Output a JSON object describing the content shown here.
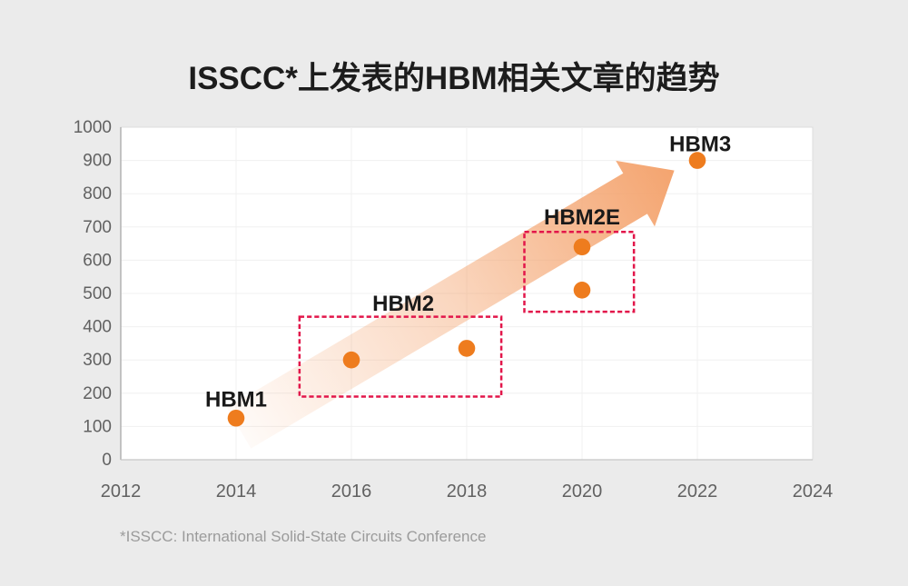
{
  "title": "ISSCC*上发表的HBM相关文章的趋势",
  "footnote": "*ISSCC: International Solid-State Circuits Conference",
  "chart_data": {
    "type": "scatter",
    "title": "ISSCC*上发表的HBM相关文章的趋势",
    "xlabel": "",
    "ylabel": "",
    "xlim": [
      2012,
      2024
    ],
    "ylim": [
      0,
      1000
    ],
    "x_ticks": [
      2012,
      2014,
      2016,
      2018,
      2020,
      2022,
      2024
    ],
    "y_ticks": [
      0,
      100,
      200,
      300,
      400,
      500,
      600,
      700,
      800,
      900,
      1000
    ],
    "grid": true,
    "points": [
      {
        "x": 2014,
        "y": 125,
        "group": "HBM1"
      },
      {
        "x": 2016,
        "y": 300,
        "group": "HBM2"
      },
      {
        "x": 2018,
        "y": 335,
        "group": "HBM2"
      },
      {
        "x": 2020,
        "y": 510,
        "group": "HBM2E"
      },
      {
        "x": 2020,
        "y": 640,
        "group": "HBM2E"
      },
      {
        "x": 2022,
        "y": 900,
        "group": "HBM3"
      }
    ],
    "point_color": "#ee7c1e",
    "point_labels": [
      {
        "text": "HBM1",
        "x": 2014,
        "y": 182
      },
      {
        "text": "HBM2",
        "x": 2016.9,
        "y": 470
      },
      {
        "text": "HBM2E",
        "x": 2020,
        "y": 730
      },
      {
        "text": "HBM3",
        "x": 2022.05,
        "y": 950
      }
    ],
    "boxes": [
      {
        "x1": 2015.1,
        "y1": 190,
        "x2": 2018.6,
        "y2": 430
      },
      {
        "x1": 2019.0,
        "y1": 445,
        "x2": 2020.9,
        "y2": 685
      }
    ],
    "box_color": "#e2164a",
    "arrow": {
      "x1": 2014.05,
      "y1": 95,
      "x2": 2021.6,
      "y2": 870,
      "color": "#f4a46f"
    },
    "grid_color": "#f0f0f0",
    "axis_text_color": "#616161",
    "label_color": "#191919"
  }
}
